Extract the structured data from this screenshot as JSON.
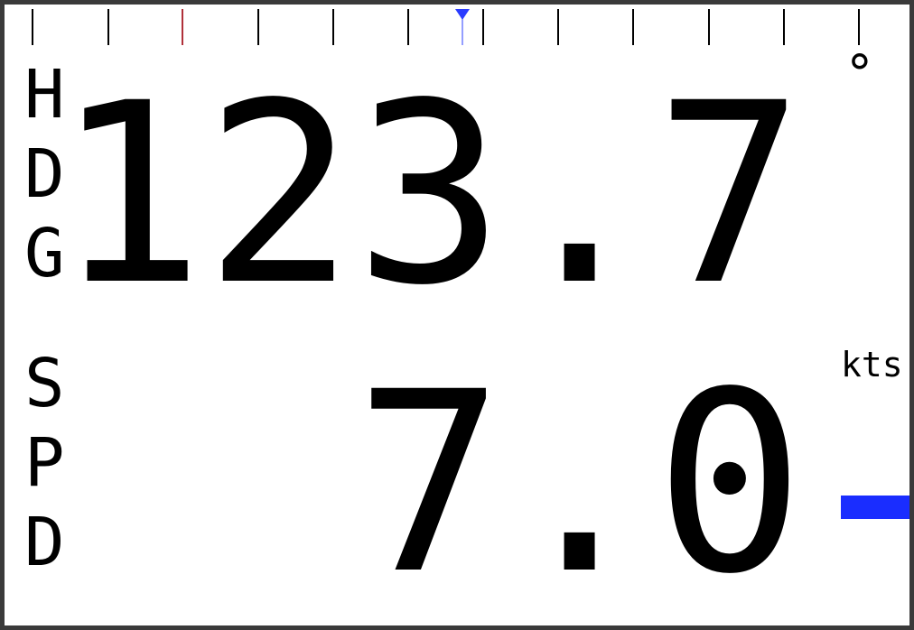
{
  "heading": {
    "label_chars": [
      "H",
      "D",
      "G"
    ],
    "value": "123.7",
    "unit": "°"
  },
  "speed": {
    "label_chars": [
      "S",
      "P",
      "D"
    ],
    "value": "7.0",
    "unit": "kts",
    "bar_color": "#1a2dff"
  },
  "compass": {
    "tick_color": "#000000",
    "reference_mark_color": "#b0303a",
    "pointer_color": "#2a3cff"
  }
}
